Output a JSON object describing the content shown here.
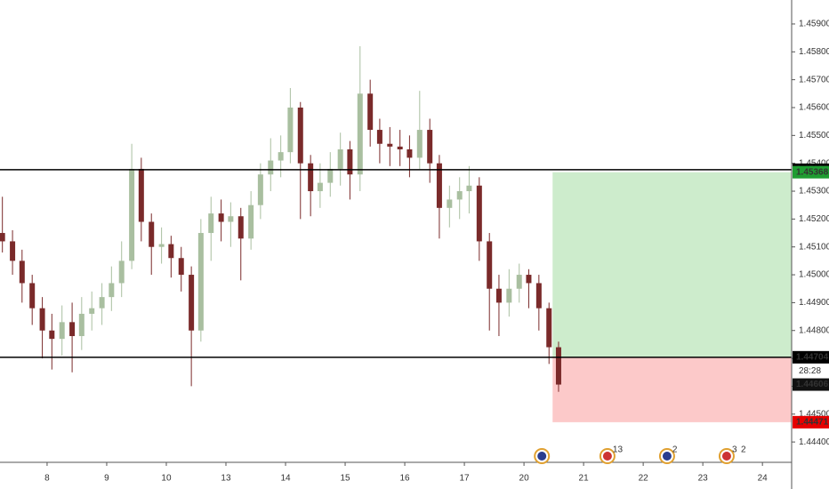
{
  "chart_data": {
    "type": "candlestick",
    "x": [
      -0.75,
      -0.58,
      -0.42,
      -0.25,
      -0.08,
      0.08,
      0.25,
      0.42,
      0.58,
      0.75,
      0.92,
      1.08,
      1.25,
      1.42,
      1.58,
      1.75,
      1.92,
      2.08,
      2.25,
      2.42,
      2.58,
      2.75,
      2.92,
      3.08,
      3.25,
      3.42,
      3.58,
      3.75,
      3.92,
      4.08,
      4.25,
      4.42,
      4.58,
      4.75,
      4.92,
      5.08,
      5.25,
      5.42,
      5.58,
      5.75,
      5.92,
      6.08,
      6.25,
      6.42,
      6.58,
      6.75,
      6.92,
      7.08,
      7.25,
      7.42,
      7.58,
      7.75,
      7.92,
      8.08,
      8.25,
      8.42,
      8.58
    ],
    "open": [
      1.4515,
      1.4512,
      1.4505,
      1.4497,
      1.4488,
      1.448,
      1.4477,
      1.4483,
      1.4478,
      1.4486,
      1.4488,
      1.4492,
      1.4497,
      1.4505,
      1.4538,
      1.4519,
      1.451,
      1.4511,
      1.4506,
      1.45,
      1.448,
      1.4515,
      1.4522,
      1.4519,
      1.4521,
      1.4513,
      1.4525,
      1.4536,
      1.4541,
      1.4544,
      1.456,
      1.454,
      1.453,
      1.4533,
      1.4538,
      1.4545,
      1.4536,
      1.4565,
      1.4552,
      1.4547,
      1.4546,
      1.4545,
      1.4542,
      1.4552,
      1.454,
      1.4524,
      1.4527,
      1.453,
      1.4532,
      1.4512,
      1.4495,
      1.449,
      1.4495,
      1.45,
      1.4497,
      1.4488,
      1.4474
    ],
    "high": [
      1.4528,
      1.4516,
      1.4509,
      1.45,
      1.4492,
      1.4486,
      1.4489,
      1.449,
      1.4492,
      1.4494,
      1.4497,
      1.4503,
      1.4512,
      1.4547,
      1.4542,
      1.4522,
      1.4517,
      1.4514,
      1.451,
      1.4503,
      1.452,
      1.4528,
      1.4527,
      1.4526,
      1.4524,
      1.453,
      1.454,
      1.4549,
      1.455,
      1.4567,
      1.4562,
      1.4543,
      1.454,
      1.4544,
      1.4551,
      1.4548,
      1.4582,
      1.457,
      1.4556,
      1.4553,
      1.4552,
      1.455,
      1.4566,
      1.4556,
      1.4543,
      1.4532,
      1.4535,
      1.4539,
      1.4535,
      1.4515,
      1.45,
      1.4502,
      1.4504,
      1.4502,
      1.45,
      1.449,
      1.4476
    ],
    "low": [
      1.4508,
      1.45,
      1.449,
      1.4482,
      1.447,
      1.4466,
      1.4471,
      1.4465,
      1.4473,
      1.448,
      1.4482,
      1.4487,
      1.4492,
      1.4502,
      1.4512,
      1.45,
      1.4504,
      1.4499,
      1.4494,
      1.446,
      1.4476,
      1.4505,
      1.4512,
      1.451,
      1.4498,
      1.4509,
      1.452,
      1.453,
      1.4535,
      1.454,
      1.452,
      1.4521,
      1.4524,
      1.4528,
      1.4532,
      1.4527,
      1.453,
      1.4546,
      1.454,
      1.4539,
      1.4539,
      1.4535,
      1.4538,
      1.4533,
      1.4513,
      1.4517,
      1.452,
      1.4522,
      1.4505,
      1.448,
      1.4478,
      1.4485,
      1.449,
      1.4488,
      1.448,
      1.4468,
      1.4458
    ],
    "close": [
      1.4512,
      1.4505,
      1.4497,
      1.4488,
      1.448,
      1.4477,
      1.4483,
      1.4478,
      1.4486,
      1.4488,
      1.4492,
      1.4497,
      1.4505,
      1.4538,
      1.4519,
      1.451,
      1.4511,
      1.4506,
      1.45,
      1.448,
      1.4515,
      1.4522,
      1.4519,
      1.4521,
      1.4513,
      1.4525,
      1.4536,
      1.4541,
      1.4544,
      1.456,
      1.454,
      1.453,
      1.4533,
      1.4538,
      1.4545,
      1.4536,
      1.4565,
      1.4552,
      1.4547,
      1.4546,
      1.4545,
      1.4542,
      1.4552,
      1.454,
      1.4524,
      1.4527,
      1.453,
      1.4532,
      1.4512,
      1.4495,
      1.449,
      1.4495,
      1.45,
      1.4497,
      1.4488,
      1.4474,
      1.44606
    ],
    "up_color": "#a9bfa0",
    "down_color": "#7a2a2a",
    "xlim": [
      -0.79,
      12.49
    ],
    "xticks": [
      {
        "value": 0,
        "label": "8"
      },
      {
        "value": 1,
        "label": "9"
      },
      {
        "value": 2,
        "label": "10"
      },
      {
        "value": 3,
        "label": "13"
      },
      {
        "value": 4,
        "label": "14"
      },
      {
        "value": 5,
        "label": "15"
      },
      {
        "value": 6,
        "label": "16"
      },
      {
        "value": 7,
        "label": "17"
      },
      {
        "value": 8,
        "label": "20"
      },
      {
        "value": 9,
        "label": "21"
      },
      {
        "value": 10,
        "label": "22"
      },
      {
        "value": 11,
        "label": "23"
      },
      {
        "value": 12,
        "label": "24"
      }
    ],
    "ylim": [
      1.44327,
      1.45986
    ],
    "yticks": [
      {
        "value": 1.444,
        "label": "1.44400"
      },
      {
        "value": 1.445,
        "label": "1.44500"
      },
      {
        "value": 1.446,
        "label": "1.44600"
      },
      {
        "value": 1.447,
        "label": "1.44700"
      },
      {
        "value": 1.448,
        "label": "1.44800"
      },
      {
        "value": 1.449,
        "label": "1.44900"
      },
      {
        "value": 1.45,
        "label": "1.45000"
      },
      {
        "value": 1.451,
        "label": "1.45100"
      },
      {
        "value": 1.452,
        "label": "1.45200"
      },
      {
        "value": 1.453,
        "label": "1.45300"
      },
      {
        "value": 1.454,
        "label": "1.45400"
      },
      {
        "value": 1.455,
        "label": "1.45500"
      },
      {
        "value": 1.456,
        "label": "1.45600"
      },
      {
        "value": 1.457,
        "label": "1.45700"
      },
      {
        "value": 1.458,
        "label": "1.45800"
      },
      {
        "value": 1.459,
        "label": "1.45900"
      }
    ],
    "hlines": [
      1.45377,
      1.44704
    ],
    "last_price": 1.44606,
    "countdown": "28:28",
    "position": {
      "x_start": 8.48,
      "entry": 1.44705,
      "target": 1.45368,
      "stop": 1.44471
    },
    "events": [
      {
        "x": 8.3
      },
      {
        "x": 9.4,
        "counts": [
          13
        ]
      },
      {
        "x": 10.4,
        "counts": [
          2
        ]
      },
      {
        "x": 11.4,
        "counts": [
          3,
          2
        ]
      }
    ]
  }
}
